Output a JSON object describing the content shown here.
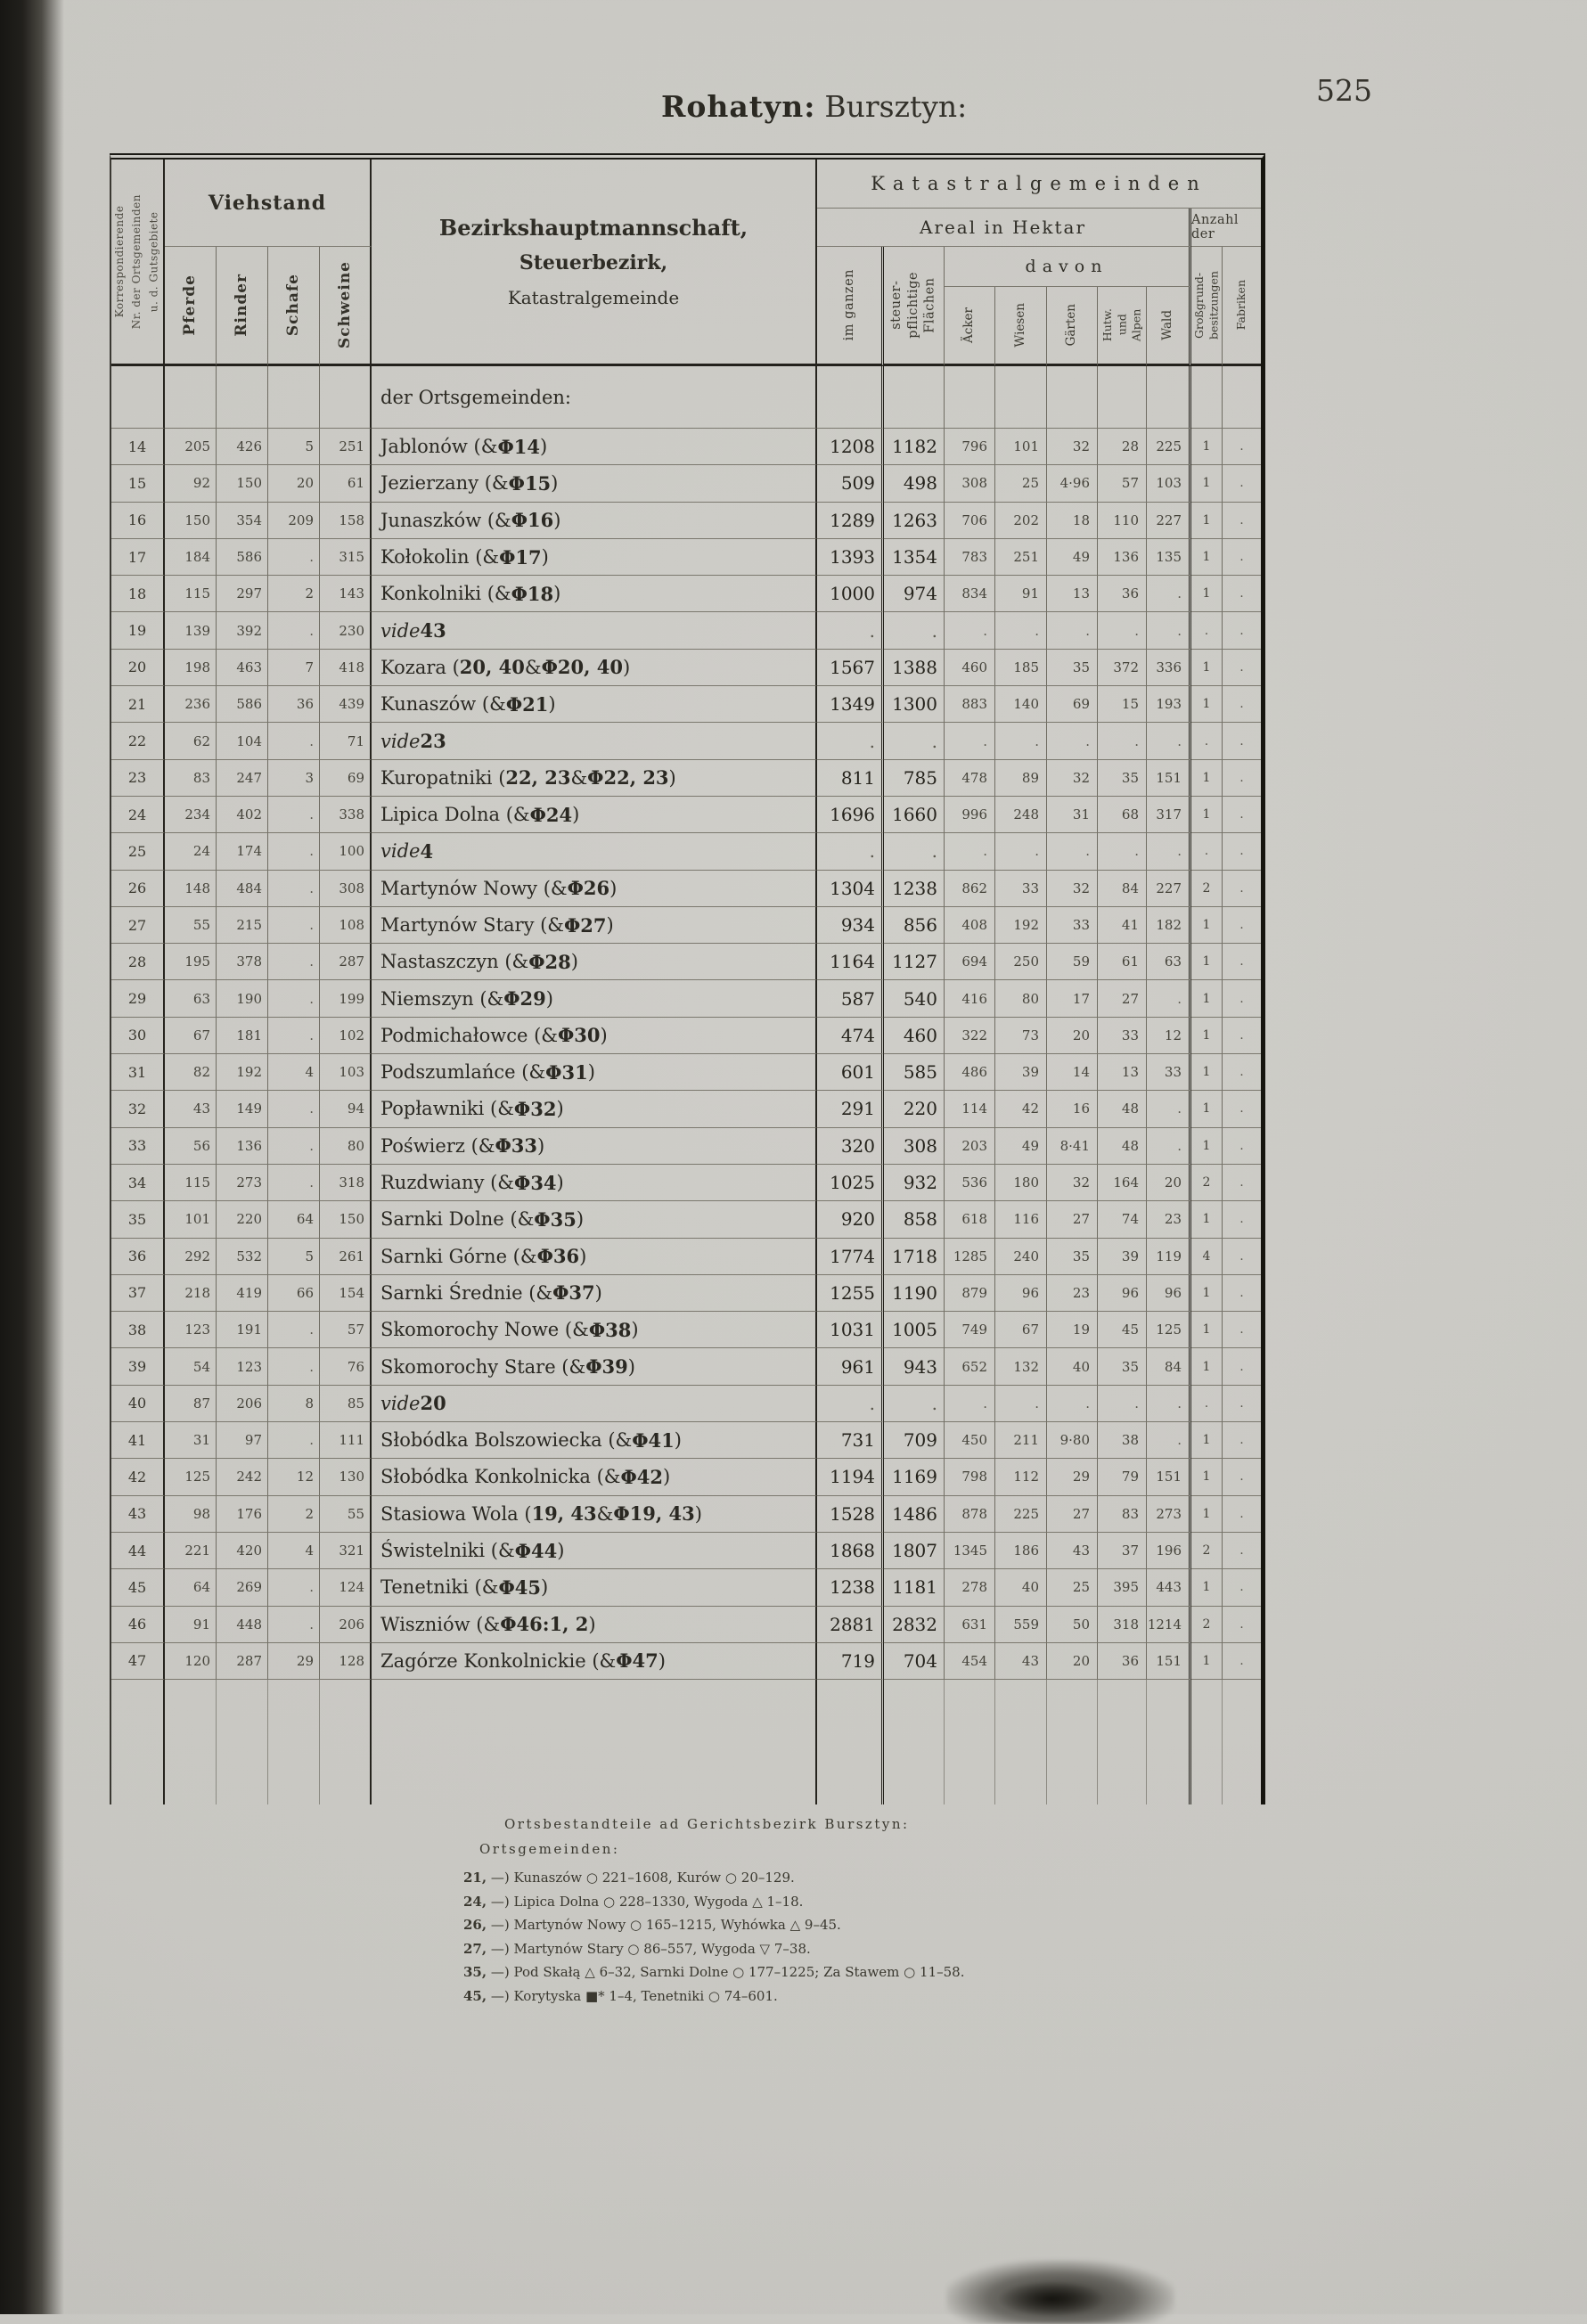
{
  "page": {
    "title_district": "Rohatyn:",
    "title_court": "Bursztyn:",
    "number": "525"
  },
  "table": {
    "corr_label": "Korrespondierende\nNr. der Ortsgemeinden\nu. d. Gutsgebiete",
    "viehstand_label": "Viehstand",
    "animal_columns": [
      "Pferde",
      "Rinder",
      "Schafe",
      "Schweine"
    ],
    "district_header": [
      "Bezirkshauptmannschaft,",
      "Steuerbezirk,",
      "Katastralgemeinde"
    ],
    "kataster_label": "Katastralgemeinden",
    "areal_label": "Areal in Hektar",
    "anzahl_label": "Anzahl der",
    "davon_label": "davon",
    "im_ganzen_label": "im ganzen",
    "steuerpflichtig_label": "steuer-\npflichtige\nFlächen",
    "davon_columns": [
      "Äcker",
      "Wiesen",
      "Gärten",
      "Hutw.\nund\nAlpen",
      "Wald"
    ],
    "anzahl_columns": [
      "Großgrund-\nbesitzungen",
      "Fabriken"
    ],
    "section_label": "der Ortsgemeinden:",
    "rows": [
      {
        "nr": "14",
        "pferde": "205",
        "rinder": "426",
        "schafe": "5",
        "schweine": "251",
        "name": "Jablonów (& Φ 14)",
        "im_ganzen": "1208",
        "steuerpflichtig": "1182",
        "aecker": "796",
        "wiesen": "101",
        "gaerten": "32",
        "hutw": "28",
        "wald": "225",
        "grossgrund": "1",
        "fabriken": "."
      },
      {
        "nr": "15",
        "pferde": "92",
        "rinder": "150",
        "schafe": "20",
        "schweine": "61",
        "name": "Jezierzany (& Φ 15)",
        "im_ganzen": "509",
        "steuerpflichtig": "498",
        "aecker": "308",
        "wiesen": "25",
        "gaerten": "4·96",
        "hutw": "57",
        "wald": "103",
        "grossgrund": "1",
        "fabriken": "."
      },
      {
        "nr": "16",
        "pferde": "150",
        "rinder": "354",
        "schafe": "209",
        "schweine": "158",
        "name": "Junaszków (& Φ 16)",
        "im_ganzen": "1289",
        "steuerpflichtig": "1263",
        "aecker": "706",
        "wiesen": "202",
        "gaerten": "18",
        "hutw": "110",
        "wald": "227",
        "grossgrund": "1",
        "fabriken": "."
      },
      {
        "nr": "17",
        "pferde": "184",
        "rinder": "586",
        "schafe": ".",
        "schweine": "315",
        "name": "Kołokolin (& Φ 17)",
        "im_ganzen": "1393",
        "steuerpflichtig": "1354",
        "aecker": "783",
        "wiesen": "251",
        "gaerten": "49",
        "hutw": "136",
        "wald": "135",
        "grossgrund": "1",
        "fabriken": "."
      },
      {
        "nr": "18",
        "pferde": "115",
        "rinder": "297",
        "schafe": "2",
        "schweine": "143",
        "name": "Konkolniki (& Φ 18)",
        "im_ganzen": "1000",
        "steuerpflichtig": "974",
        "aecker": "834",
        "wiesen": "91",
        "gaerten": "13",
        "hutw": "36",
        "wald": ".",
        "grossgrund": "1",
        "fabriken": "."
      },
      {
        "nr": "19",
        "pferde": "139",
        "rinder": "392",
        "schafe": ".",
        "schweine": "230",
        "name": "vide 43",
        "im_ganzen": ".",
        "steuerpflichtig": ".",
        "aecker": ".",
        "wiesen": ".",
        "gaerten": ".",
        "hutw": ".",
        "wald": ".",
        "grossgrund": ".",
        "fabriken": "."
      },
      {
        "nr": "20",
        "pferde": "198",
        "rinder": "463",
        "schafe": "7",
        "schweine": "418",
        "name": "Kozara (20, 40 & Φ 20, 40)",
        "im_ganzen": "1567",
        "steuerpflichtig": "1388",
        "aecker": "460",
        "wiesen": "185",
        "gaerten": "35",
        "hutw": "372",
        "wald": "336",
        "grossgrund": "1",
        "fabriken": "."
      },
      {
        "nr": "21",
        "pferde": "236",
        "rinder": "586",
        "schafe": "36",
        "schweine": "439",
        "name": "Kunaszów (& Φ 21)",
        "im_ganzen": "1349",
        "steuerpflichtig": "1300",
        "aecker": "883",
        "wiesen": "140",
        "gaerten": "69",
        "hutw": "15",
        "wald": "193",
        "grossgrund": "1",
        "fabriken": "."
      },
      {
        "nr": "22",
        "pferde": "62",
        "rinder": "104",
        "schafe": ".",
        "schweine": "71",
        "name": "vide 23",
        "im_ganzen": ".",
        "steuerpflichtig": ".",
        "aecker": ".",
        "wiesen": ".",
        "gaerten": ".",
        "hutw": ".",
        "wald": ".",
        "grossgrund": ".",
        "fabriken": "."
      },
      {
        "nr": "23",
        "pferde": "83",
        "rinder": "247",
        "schafe": "3",
        "schweine": "69",
        "name": "Kuropatniki (22, 23 & Φ 22, 23)",
        "im_ganzen": "811",
        "steuerpflichtig": "785",
        "aecker": "478",
        "wiesen": "89",
        "gaerten": "32",
        "hutw": "35",
        "wald": "151",
        "grossgrund": "1",
        "fabriken": "."
      },
      {
        "nr": "24",
        "pferde": "234",
        "rinder": "402",
        "schafe": ".",
        "schweine": "338",
        "name": "Lipica Dolna (& Φ 24)",
        "im_ganzen": "1696",
        "steuerpflichtig": "1660",
        "aecker": "996",
        "wiesen": "248",
        "gaerten": "31",
        "hutw": "68",
        "wald": "317",
        "grossgrund": "1",
        "fabriken": "."
      },
      {
        "nr": "25",
        "pferde": "24",
        "rinder": "174",
        "schafe": ".",
        "schweine": "100",
        "name": "vide 4",
        "im_ganzen": ".",
        "steuerpflichtig": ".",
        "aecker": ".",
        "wiesen": ".",
        "gaerten": ".",
        "hutw": ".",
        "wald": ".",
        "grossgrund": ".",
        "fabriken": "."
      },
      {
        "nr": "26",
        "pferde": "148",
        "rinder": "484",
        "schafe": ".",
        "schweine": "308",
        "name": "Martynów Nowy (& Φ 26)",
        "im_ganzen": "1304",
        "steuerpflichtig": "1238",
        "aecker": "862",
        "wiesen": "33",
        "gaerten": "32",
        "hutw": "84",
        "wald": "227",
        "grossgrund": "2",
        "fabriken": "."
      },
      {
        "nr": "27",
        "pferde": "55",
        "rinder": "215",
        "schafe": ".",
        "schweine": "108",
        "name": "Martynów Stary (& Φ 27)",
        "im_ganzen": "934",
        "steuerpflichtig": "856",
        "aecker": "408",
        "wiesen": "192",
        "gaerten": "33",
        "hutw": "41",
        "wald": "182",
        "grossgrund": "1",
        "fabriken": "."
      },
      {
        "nr": "28",
        "pferde": "195",
        "rinder": "378",
        "schafe": ".",
        "schweine": "287",
        "name": "Nastaszczyn (& Φ 28)",
        "im_ganzen": "1164",
        "steuerpflichtig": "1127",
        "aecker": "694",
        "wiesen": "250",
        "gaerten": "59",
        "hutw": "61",
        "wald": "63",
        "grossgrund": "1",
        "fabriken": "."
      },
      {
        "nr": "29",
        "pferde": "63",
        "rinder": "190",
        "schafe": ".",
        "schweine": "199",
        "name": "Niemszyn (& Φ 29)",
        "im_ganzen": "587",
        "steuerpflichtig": "540",
        "aecker": "416",
        "wiesen": "80",
        "gaerten": "17",
        "hutw": "27",
        "wald": ".",
        "grossgrund": "1",
        "fabriken": "."
      },
      {
        "nr": "30",
        "pferde": "67",
        "rinder": "181",
        "schafe": ".",
        "schweine": "102",
        "name": "Podmichałowce (& Φ 30)",
        "im_ganzen": "474",
        "steuerpflichtig": "460",
        "aecker": "322",
        "wiesen": "73",
        "gaerten": "20",
        "hutw": "33",
        "wald": "12",
        "grossgrund": "1",
        "fabriken": "."
      },
      {
        "nr": "31",
        "pferde": "82",
        "rinder": "192",
        "schafe": "4",
        "schweine": "103",
        "name": "Podszumlańce (& Φ 31)",
        "im_ganzen": "601",
        "steuerpflichtig": "585",
        "aecker": "486",
        "wiesen": "39",
        "gaerten": "14",
        "hutw": "13",
        "wald": "33",
        "grossgrund": "1",
        "fabriken": "."
      },
      {
        "nr": "32",
        "pferde": "43",
        "rinder": "149",
        "schafe": ".",
        "schweine": "94",
        "name": "Popławniki (& Φ 32)",
        "im_ganzen": "291",
        "steuerpflichtig": "220",
        "aecker": "114",
        "wiesen": "42",
        "gaerten": "16",
        "hutw": "48",
        "wald": ".",
        "grossgrund": "1",
        "fabriken": "."
      },
      {
        "nr": "33",
        "pferde": "56",
        "rinder": "136",
        "schafe": ".",
        "schweine": "80",
        "name": "Poświerz (& Φ 33)",
        "im_ganzen": "320",
        "steuerpflichtig": "308",
        "aecker": "203",
        "wiesen": "49",
        "gaerten": "8·41",
        "hutw": "48",
        "wald": ".",
        "grossgrund": "1",
        "fabriken": "."
      },
      {
        "nr": "34",
        "pferde": "115",
        "rinder": "273",
        "schafe": ".",
        "schweine": "318",
        "name": "Ruzdwiany (& Φ 34)",
        "im_ganzen": "1025",
        "steuerpflichtig": "932",
        "aecker": "536",
        "wiesen": "180",
        "gaerten": "32",
        "hutw": "164",
        "wald": "20",
        "grossgrund": "2",
        "fabriken": "."
      },
      {
        "nr": "35",
        "pferde": "101",
        "rinder": "220",
        "schafe": "64",
        "schweine": "150",
        "name": "Sarnki Dolne (& Φ 35)",
        "im_ganzen": "920",
        "steuerpflichtig": "858",
        "aecker": "618",
        "wiesen": "116",
        "gaerten": "27",
        "hutw": "74",
        "wald": "23",
        "grossgrund": "1",
        "fabriken": "."
      },
      {
        "nr": "36",
        "pferde": "292",
        "rinder": "532",
        "schafe": "5",
        "schweine": "261",
        "name": "Sarnki Górne (& Φ 36)",
        "im_ganzen": "1774",
        "steuerpflichtig": "1718",
        "aecker": "1285",
        "wiesen": "240",
        "gaerten": "35",
        "hutw": "39",
        "wald": "119",
        "grossgrund": "4",
        "fabriken": "."
      },
      {
        "nr": "37",
        "pferde": "218",
        "rinder": "419",
        "schafe": "66",
        "schweine": "154",
        "name": "Sarnki Średnie (& Φ 37)",
        "im_ganzen": "1255",
        "steuerpflichtig": "1190",
        "aecker": "879",
        "wiesen": "96",
        "gaerten": "23",
        "hutw": "96",
        "wald": "96",
        "grossgrund": "1",
        "fabriken": "."
      },
      {
        "nr": "38",
        "pferde": "123",
        "rinder": "191",
        "schafe": ".",
        "schweine": "57",
        "name": "Skomorochy Nowe (& Φ 38)",
        "im_ganzen": "1031",
        "steuerpflichtig": "1005",
        "aecker": "749",
        "wiesen": "67",
        "gaerten": "19",
        "hutw": "45",
        "wald": "125",
        "grossgrund": "1",
        "fabriken": "."
      },
      {
        "nr": "39",
        "pferde": "54",
        "rinder": "123",
        "schafe": ".",
        "schweine": "76",
        "name": "Skomorochy Stare (& Φ 39)",
        "im_ganzen": "961",
        "steuerpflichtig": "943",
        "aecker": "652",
        "wiesen": "132",
        "gaerten": "40",
        "hutw": "35",
        "wald": "84",
        "grossgrund": "1",
        "fabriken": "."
      },
      {
        "nr": "40",
        "pferde": "87",
        "rinder": "206",
        "schafe": "8",
        "schweine": "85",
        "name": "vide 20",
        "im_ganzen": ".",
        "steuerpflichtig": ".",
        "aecker": ".",
        "wiesen": ".",
        "gaerten": ".",
        "hutw": ".",
        "wald": ".",
        "grossgrund": ".",
        "fabriken": "."
      },
      {
        "nr": "41",
        "pferde": "31",
        "rinder": "97",
        "schafe": ".",
        "schweine": "111",
        "name": "Słobódka Bolszowiecka (& Φ 41)",
        "im_ganzen": "731",
        "steuerpflichtig": "709",
        "aecker": "450",
        "wiesen": "211",
        "gaerten": "9·80",
        "hutw": "38",
        "wald": ".",
        "grossgrund": "1",
        "fabriken": "."
      },
      {
        "nr": "42",
        "pferde": "125",
        "rinder": "242",
        "schafe": "12",
        "schweine": "130",
        "name": "Słobódka Konkolnicka (& Φ 42)",
        "im_ganzen": "1194",
        "steuerpflichtig": "1169",
        "aecker": "798",
        "wiesen": "112",
        "gaerten": "29",
        "hutw": "79",
        "wald": "151",
        "grossgrund": "1",
        "fabriken": "."
      },
      {
        "nr": "43",
        "pferde": "98",
        "rinder": "176",
        "schafe": "2",
        "schweine": "55",
        "name": "Stasiowa Wola (19, 43 & Φ 19, 43)",
        "im_ganzen": "1528",
        "steuerpflichtig": "1486",
        "aecker": "878",
        "wiesen": "225",
        "gaerten": "27",
        "hutw": "83",
        "wald": "273",
        "grossgrund": "1",
        "fabriken": "."
      },
      {
        "nr": "44",
        "pferde": "221",
        "rinder": "420",
        "schafe": "4",
        "schweine": "321",
        "name": "Świstelniki (& Φ 44)",
        "im_ganzen": "1868",
        "steuerpflichtig": "1807",
        "aecker": "1345",
        "wiesen": "186",
        "gaerten": "43",
        "hutw": "37",
        "wald": "196",
        "grossgrund": "2",
        "fabriken": "."
      },
      {
        "nr": "45",
        "pferde": "64",
        "rinder": "269",
        "schafe": ".",
        "schweine": "124",
        "name": "Tenetniki (& Φ 45)",
        "im_ganzen": "1238",
        "steuerpflichtig": "1181",
        "aecker": "278",
        "wiesen": "40",
        "gaerten": "25",
        "hutw": "395",
        "wald": "443",
        "grossgrund": "1",
        "fabriken": "."
      },
      {
        "nr": "46",
        "pferde": "91",
        "rinder": "448",
        "schafe": ".",
        "schweine": "206",
        "name": "Wiszniów (& Φ 46:1, 2)",
        "im_ganzen": "2881",
        "steuerpflichtig": "2832",
        "aecker": "631",
        "wiesen": "559",
        "gaerten": "50",
        "hutw": "318",
        "wald": "1214",
        "grossgrund": "2",
        "fabriken": "."
      },
      {
        "nr": "47",
        "pferde": "120",
        "rinder": "287",
        "schafe": "29",
        "schweine": "128",
        "name": "Zagórze Konkolnickie (& Φ 47)",
        "im_ganzen": "719",
        "steuerpflichtig": "704",
        "aecker": "454",
        "wiesen": "43",
        "gaerten": "20",
        "hutw": "36",
        "wald": "151",
        "grossgrund": "1",
        "fabriken": "."
      }
    ]
  },
  "footnotes": {
    "heading1": "Ortsbestandteile ad Gerichtsbezirk Bursztyn:",
    "heading2": "Ortsgemeinden:",
    "items": [
      {
        "nr": "21,",
        "text": "—) Kunaszów ○ 221–1608, Kurów ○ 20–129."
      },
      {
        "nr": "24,",
        "text": "—) Lipica Dolna ○ 228–1330, Wygoda △ 1–18."
      },
      {
        "nr": "26,",
        "text": "—) Martynów Nowy ○ 165–1215, Wyhówka △ 9–45."
      },
      {
        "nr": "27,",
        "text": "—) Martynów Stary ○ 86–557, Wygoda ▽ 7–38."
      },
      {
        "nr": "35,",
        "text": "—) Pod Skałą △ 6–32, Sarnki Dolne ○ 177–1225; Za Stawem ○ 11–58."
      },
      {
        "nr": "45,",
        "text": "—) Korytyska ■* 1–4, Tenetniki ○ 74–601."
      }
    ]
  }
}
